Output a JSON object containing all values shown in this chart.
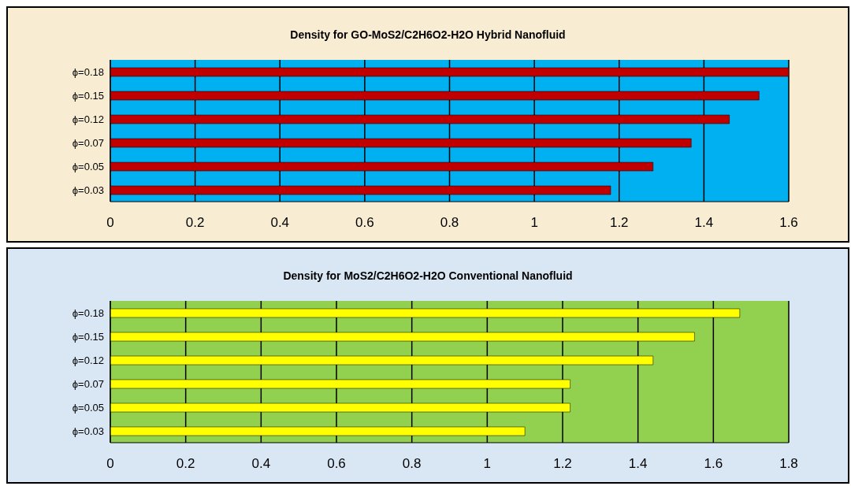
{
  "chart_data": [
    {
      "type": "bar",
      "orientation": "horizontal",
      "title": "Density for GO-MoS2/C2H6O2-H2O Hybrid Nanofluid",
      "categories": [
        "ϕ=0.18",
        "ϕ=0.15",
        "ϕ=0.12",
        "ϕ=0.07",
        "ϕ=0.05",
        "ϕ=0.03"
      ],
      "values": [
        1.6,
        1.53,
        1.46,
        1.37,
        1.28,
        1.18
      ],
      "color": "#c00000",
      "xlim": [
        0,
        1.6
      ],
      "xticks": [
        0,
        0.2,
        0.4,
        0.6,
        0.8,
        1,
        1.2,
        1.4,
        1.6
      ],
      "grid": "x"
    },
    {
      "type": "bar",
      "orientation": "horizontal",
      "title": "Density for MoS2/C2H6O2-H2O Conventional Nanofluid",
      "categories": [
        "ϕ=0.18",
        "ϕ=0.15",
        "ϕ=0.12",
        "ϕ=0.07",
        "ϕ=0.05",
        "ϕ=0.03"
      ],
      "values": [
        1.67,
        1.55,
        1.44,
        1.22,
        1.22,
        1.1
      ],
      "color": "#ffff00",
      "xlim": [
        0,
        1.8
      ],
      "xticks": [
        0,
        0.2,
        0.4,
        0.6,
        0.8,
        1,
        1.2,
        1.4,
        1.6,
        1.8
      ],
      "grid": "x"
    }
  ]
}
